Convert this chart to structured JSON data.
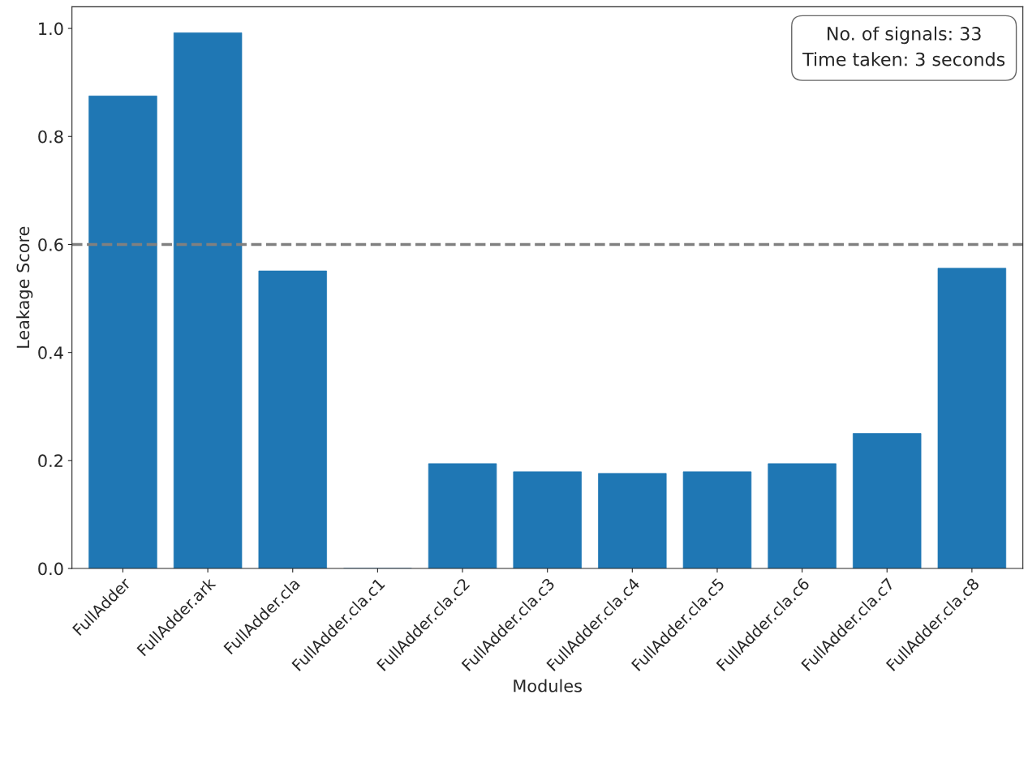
{
  "chart_data": {
    "type": "bar",
    "categories": [
      "FullAdder",
      "FullAdder.ark",
      "FullAdder.cla",
      "FullAdder.cla.c1",
      "FullAdder.cla.c2",
      "FullAdder.cla.c3",
      "FullAdder.cla.c4",
      "FullAdder.cla.c5",
      "FullAdder.cla.c6",
      "FullAdder.cla.c7",
      "FullAdder.cla.c8"
    ],
    "values": [
      0.875,
      0.992,
      0.551,
      0,
      0.194,
      0.179,
      0.176,
      0.179,
      0.194,
      0.25,
      0.556
    ],
    "color": "#1f77b4",
    "xlabel": "Modules",
    "ylabel": "Leakage Score",
    "ylim": [
      0,
      1.04
    ],
    "yticks": [
      {
        "value": 0,
        "label": "0.0"
      },
      0.2,
      0.4,
      0.6,
      0.8,
      {
        "value": 1,
        "label": "1.0"
      }
    ],
    "ref_lines": [
      {
        "axis": "y",
        "value": 0.6,
        "color": "#808080",
        "line_style": "dashed"
      }
    ],
    "annotations": [
      "No. of signals: 33",
      "Time taken: 3 seconds"
    ],
    "grid": false,
    "legend": false
  }
}
